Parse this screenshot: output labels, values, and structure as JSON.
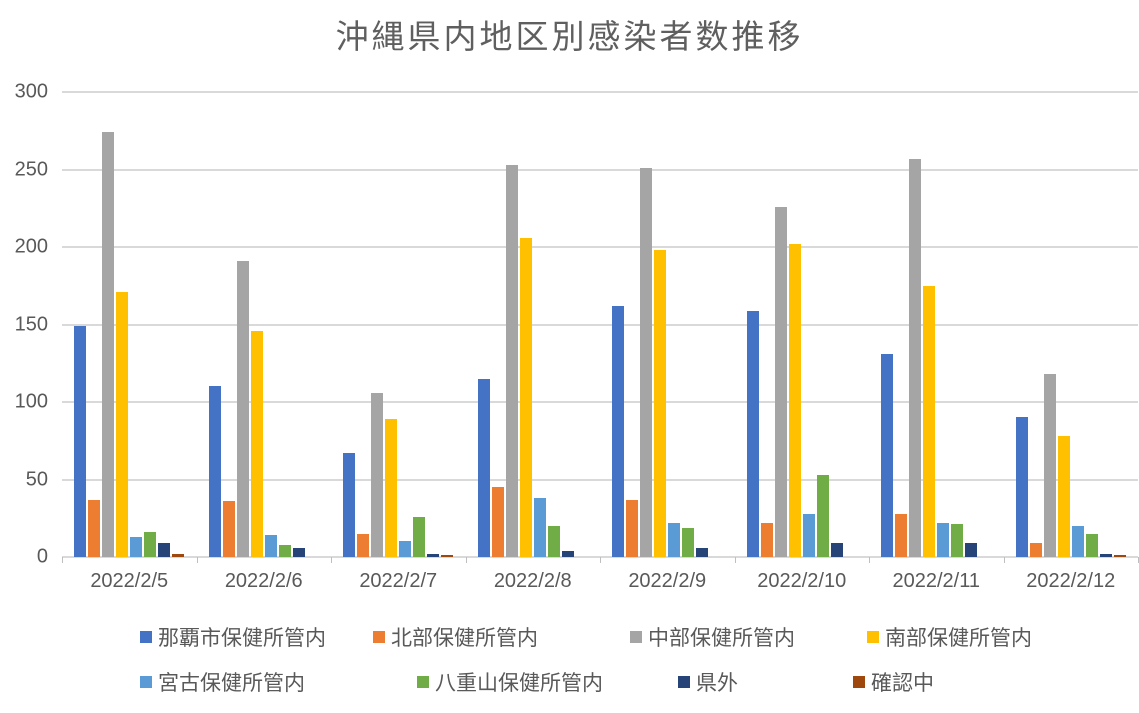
{
  "colors": {
    "background": "#FFFFFF",
    "text": "#595959",
    "title_text": "#5F5F5F",
    "grid": "#D9D9D9",
    "axis": "#BFBFBF"
  },
  "chart_data": {
    "type": "bar",
    "title": "沖縄県内地区別感染者数推移",
    "xlabel": "",
    "ylabel": "",
    "ylim": [
      0,
      300
    ],
    "yticks": [
      0,
      50,
      100,
      150,
      200,
      250,
      300
    ],
    "grid": true,
    "legend_position": "bottom",
    "categories": [
      "2022/2/5",
      "2022/2/6",
      "2022/2/7",
      "2022/2/8",
      "2022/2/9",
      "2022/2/10",
      "2022/2/11",
      "2022/2/12"
    ],
    "series": [
      {
        "name": "那覇市保健所管内",
        "color": "#4472C4",
        "values": [
          149,
          110,
          67,
          115,
          162,
          159,
          131,
          90
        ]
      },
      {
        "name": "北部保健所管内",
        "color": "#ED7D31",
        "values": [
          37,
          36,
          15,
          45,
          37,
          22,
          28,
          9
        ]
      },
      {
        "name": "中部保健所管内",
        "color": "#A5A5A5",
        "values": [
          274,
          191,
          106,
          253,
          251,
          226,
          257,
          118
        ]
      },
      {
        "name": "南部保健所管内",
        "color": "#FFC000",
        "values": [
          171,
          146,
          89,
          206,
          198,
          202,
          175,
          78
        ]
      },
      {
        "name": "宮古保健所管内",
        "color": "#5B9BD5",
        "values": [
          13,
          14,
          10,
          38,
          22,
          28,
          22,
          20
        ]
      },
      {
        "name": "八重山保健所管内",
        "color": "#70AD47",
        "values": [
          16,
          8,
          26,
          20,
          19,
          53,
          21,
          15
        ]
      },
      {
        "name": "県外",
        "color": "#264478",
        "values": [
          9,
          6,
          2,
          4,
          6,
          9,
          9,
          2
        ]
      },
      {
        "name": "確認中",
        "color": "#9E480E",
        "values": [
          2,
          0,
          1,
          0,
          0,
          0,
          0,
          1
        ]
      }
    ]
  }
}
